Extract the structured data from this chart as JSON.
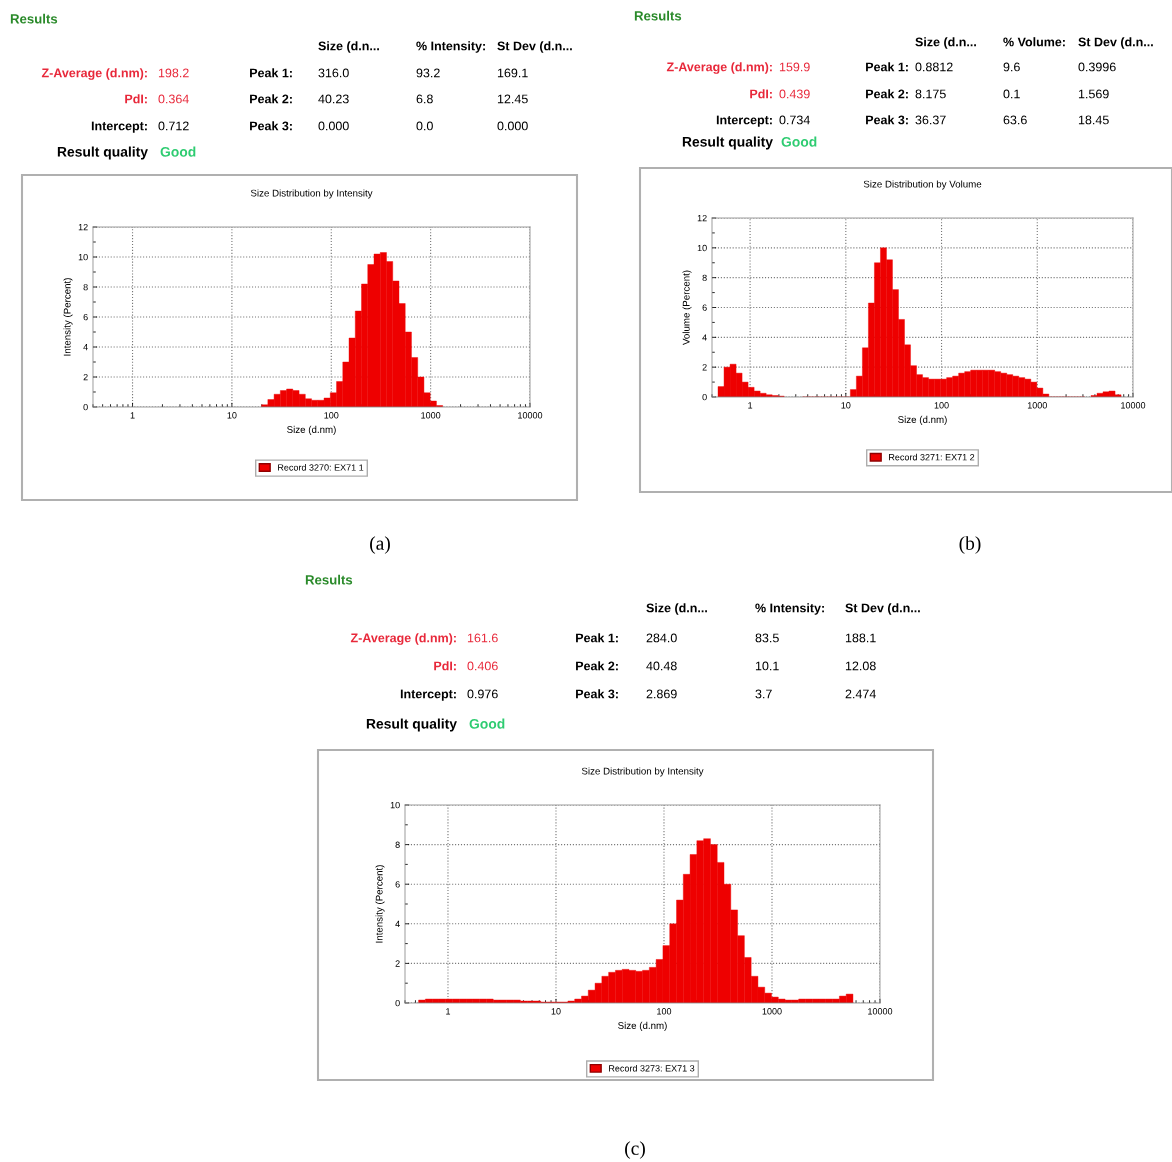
{
  "chart_data": [
    {
      "type": "other",
      "title": "Results",
      "annotations": [
        "Size (d.n...",
        "% Intensity:",
        "St Dev (d.n...",
        "Z-Average (d.nm):",
        "198.2",
        "Peak 1:",
        "316.0",
        "93.2",
        "169.1",
        "PdI:",
        "0.364",
        "Peak 2:",
        "40.23",
        "6.8",
        "12.45",
        "Intercept:",
        "0.712",
        "Peak 3:",
        "0.000",
        "0.0",
        "0.000",
        "Result quality",
        "Good"
      ]
    },
    {
      "type": "histogram",
      "title": "Size Distribution by Intensity",
      "xlabel": "Size (d.nm)",
      "ylabel": "Intensity (Percent)",
      "log": "x",
      "xlim": [
        0.4,
        10000
      ],
      "xticks": [
        1,
        10,
        100,
        1000,
        10000
      ],
      "ylim": [
        0,
        12
      ],
      "yticks": [
        0,
        2,
        4,
        6,
        8,
        10,
        12
      ],
      "grid": true,
      "legend": "bottom",
      "annotations": [
        "(a)"
      ],
      "bins": [
        19.9,
        23.0,
        26.58,
        30.72,
        35.5,
        41.02,
        47.41,
        54.79,
        63.32,
        73.18,
        84.57,
        97.75,
        113.0,
        130.6,
        150.9,
        174.4,
        201.5,
        232.9,
        269.2,
        311.1,
        359.5,
        415.5,
        480.2,
        554.9,
        641.3,
        741.2,
        856.6,
        990.0,
        1144,
        1322
      ],
      "series": [
        {
          "name": "Record 3270: EX71 1",
          "color": "#ee0000",
          "values": [
            0.15,
            0.5,
            0.85,
            1.1,
            1.2,
            1.1,
            0.85,
            0.55,
            0.45,
            0.45,
            0.6,
            0.95,
            1.7,
            3.0,
            4.6,
            6.4,
            8.2,
            9.5,
            10.2,
            10.3,
            9.7,
            8.4,
            6.9,
            5.0,
            3.3,
            2.0,
            0.95,
            0.4,
            0.1
          ]
        }
      ]
    },
    {
      "type": "other",
      "title": "Results",
      "annotations": [
        "Size (d.n...",
        "% Volume:",
        "St Dev (d.n...",
        "Z-Average (d.nm):",
        "159.9",
        "Peak 1:",
        "0.8812",
        "9.6",
        "0.3996",
        "PdI:",
        "0.439",
        "Peak 2:",
        "8.175",
        "0.1",
        "1.569",
        "Intercept:",
        "0.734",
        "Peak 3:",
        "36.37",
        "63.6",
        "18.45",
        "Result quality",
        "Good"
      ]
    },
    {
      "type": "histogram",
      "title": "Size Distribution by Volume",
      "xlabel": "Size (d.nm)",
      "ylabel": "Volume (Percent)",
      "log": "x",
      "xlim": [
        0.4,
        10000
      ],
      "xticks": [
        1,
        10,
        100,
        1000,
        10000
      ],
      "ylim": [
        0,
        12
      ],
      "yticks": [
        0,
        2,
        4,
        6,
        8,
        10,
        12
      ],
      "grid": true,
      "legend": "bottom",
      "annotations": [
        "(b)"
      ],
      "bins": [
        0.4623,
        0.5343,
        0.6175,
        0.7137,
        0.8248,
        0.9531,
        1.102,
        1.273,
        1.471,
        1.701,
        1.965,
        2.271,
        2.624,
        3.033,
        3.505,
        4.051,
        4.682,
        5.411,
        6.253,
        7.227,
        8.352,
        9.652,
        11.15,
        12.89,
        14.9,
        17.22,
        19.9,
        23.0,
        26.58,
        30.72,
        35.5,
        41.02,
        47.41,
        54.79,
        63.32,
        73.18,
        84.57,
        97.75,
        113.0,
        130.6,
        150.9,
        174.4,
        201.5,
        232.9,
        269.2,
        311.1,
        359.5,
        415.5,
        480.2,
        554.9,
        641.3,
        741.2,
        856.6,
        990.0,
        1144,
        1322,
        1528,
        1766,
        2041,
        2359,
        2726,
        3151,
        3641,
        4208,
        4863,
        5620,
        6495,
        7507
      ],
      "series": [
        {
          "name": "Record 3271: EX71 2",
          "color": "#ee0000",
          "values": [
            0.7,
            2.0,
            2.2,
            1.6,
            1.0,
            0.65,
            0.4,
            0.25,
            0.15,
            0.1,
            0.06,
            null,
            null,
            null,
            0,
            0,
            0,
            0,
            0,
            0,
            0,
            0,
            0.5,
            1.4,
            3.3,
            6.3,
            9.0,
            10.0,
            9.2,
            7.2,
            5.2,
            3.5,
            2.1,
            1.5,
            1.3,
            1.2,
            1.2,
            1.2,
            1.3,
            1.4,
            1.6,
            1.7,
            1.8,
            1.8,
            1.8,
            1.8,
            1.7,
            1.6,
            1.5,
            1.4,
            1.3,
            1.2,
            1.0,
            0.6,
            0.2,
            0,
            0,
            0,
            0,
            0,
            0,
            null,
            0.1,
            0.25,
            0.35,
            0.4,
            0.15
          ]
        }
      ]
    },
    {
      "type": "other",
      "title": "Results",
      "annotations": [
        "Size (d.n...",
        "% Intensity:",
        "St Dev (d.n...",
        "Z-Average (d.nm):",
        "161.6",
        "Peak 1:",
        "284.0",
        "83.5",
        "188.1",
        "PdI:",
        "0.406",
        "Peak 2:",
        "40.48",
        "10.1",
        "12.08",
        "Intercept:",
        "0.976",
        "Peak 3:",
        "2.869",
        "3.7",
        "2.474",
        "Result quality",
        "Good"
      ]
    },
    {
      "type": "histogram",
      "title": "Size Distribution by Intensity",
      "xlabel": "Size (d.nm)",
      "ylabel": "Intensity (Percent)",
      "log": "x",
      "xlim": [
        0.4,
        10000
      ],
      "xticks": [
        1,
        10,
        100,
        1000,
        10000
      ],
      "ylim": [
        0,
        10
      ],
      "yticks": [
        0,
        2,
        4,
        6,
        8,
        10
      ],
      "grid": true,
      "legend": "bottom",
      "annotations": [
        "(c)"
      ],
      "bins": [
        0.5343,
        0.6175,
        0.7137,
        0.8248,
        0.9531,
        1.102,
        1.273,
        1.471,
        1.701,
        1.965,
        2.271,
        2.624,
        3.033,
        3.505,
        4.051,
        4.682,
        5.411,
        6.253,
        7.227,
        8.352,
        9.652,
        11.15,
        12.89,
        14.9,
        17.22,
        19.9,
        23.0,
        26.58,
        30.72,
        35.5,
        41.02,
        47.41,
        54.79,
        63.32,
        73.18,
        84.57,
        97.75,
        113.0,
        130.6,
        150.9,
        174.4,
        201.5,
        232.9,
        269.2,
        311.1,
        359.5,
        415.5,
        480.2,
        554.9,
        641.3,
        741.2,
        856.6,
        990.0,
        1144,
        1322,
        1528,
        1766,
        2041,
        2359,
        2726,
        3151,
        3641,
        4208,
        4863,
        5620
      ],
      "series": [
        {
          "name": "Record 3273: EX71 3",
          "color": "#ee0000",
          "values": [
            0.15,
            0.2,
            0.2,
            0.2,
            0.2,
            0.2,
            0.2,
            0.2,
            0.2,
            0.2,
            0.2,
            0.15,
            0.15,
            0.15,
            0.15,
            0.1,
            0.1,
            0.1,
            0.05,
            0.05,
            0.05,
            0.05,
            0.1,
            0.2,
            0.35,
            0.65,
            1.0,
            1.35,
            1.55,
            1.65,
            1.7,
            1.65,
            1.6,
            1.65,
            1.8,
            2.2,
            2.9,
            4.0,
            5.2,
            6.5,
            7.5,
            8.2,
            8.3,
            8.0,
            7.1,
            6.0,
            4.7,
            3.4,
            2.3,
            1.35,
            0.8,
            0.5,
            0.3,
            0.2,
            0.15,
            0.15,
            0.2,
            0.2,
            0.2,
            0.2,
            0.2,
            0.2,
            0.35,
            0.45
          ]
        }
      ]
    }
  ]
}
